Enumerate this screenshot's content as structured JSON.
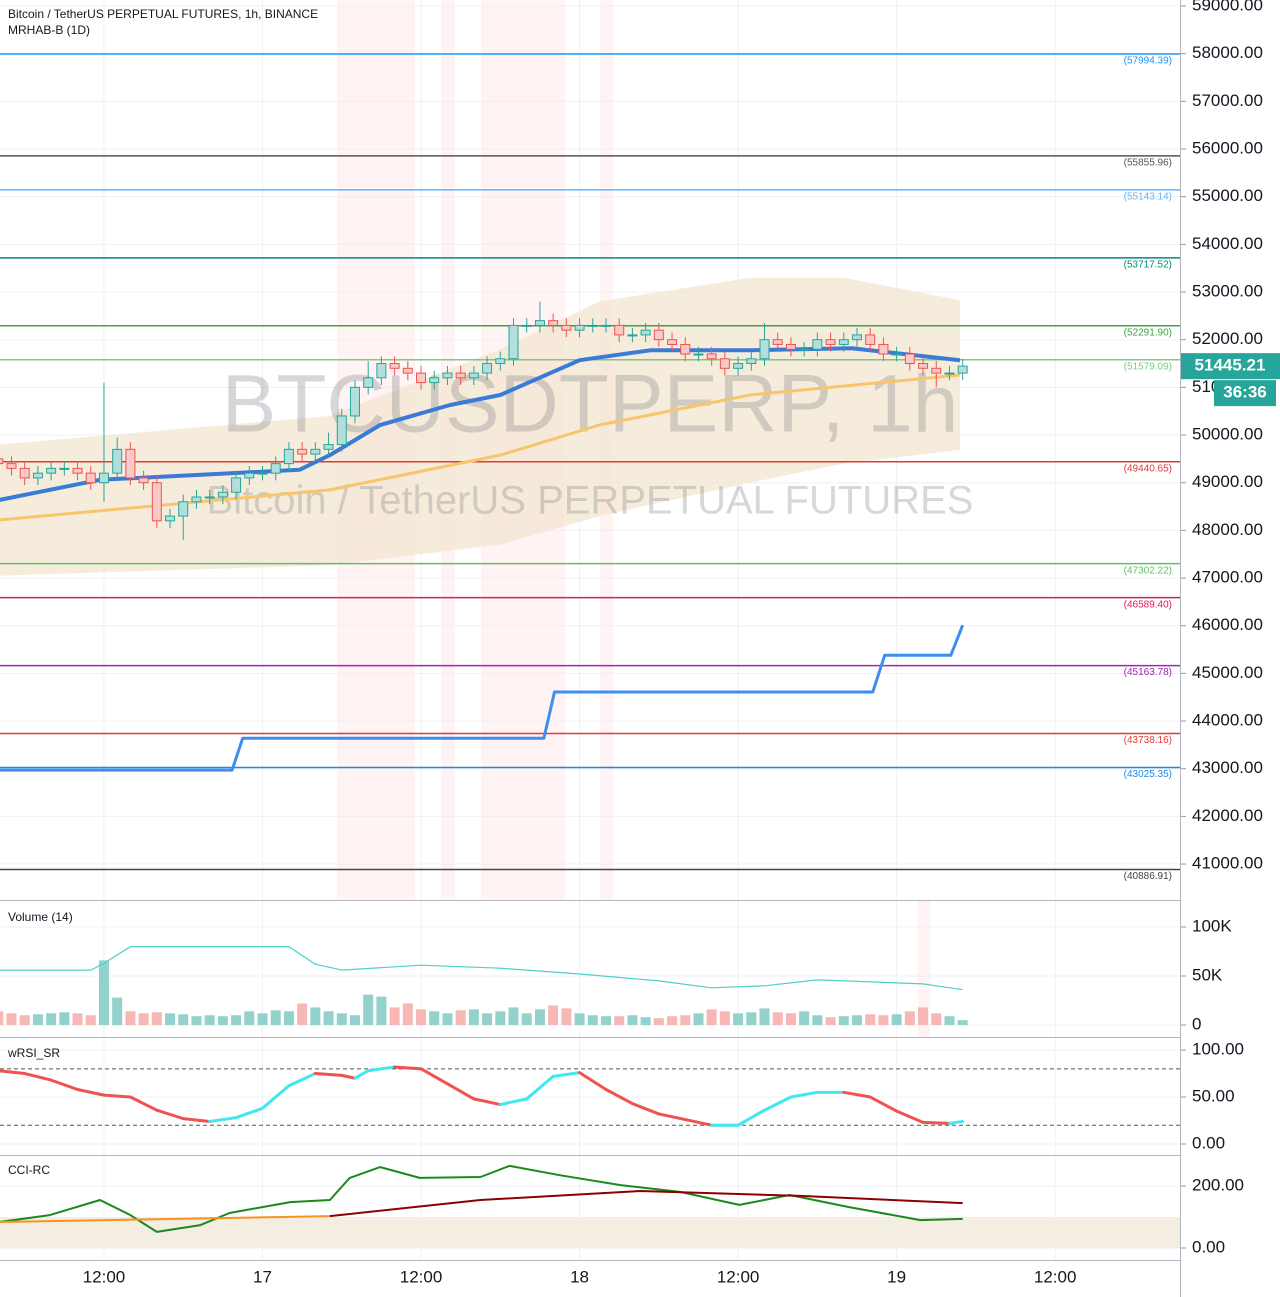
{
  "chart_data": [
    {
      "type": "candlestick",
      "title": "Bitcoin / TetherUS PERPETUAL FUTURES, 1h, BINANCE",
      "indicator": "MRHAB-B (1D)",
      "watermark": "BTCUSDTPERP, 1h",
      "watermark_subtitle": "Bitcoin / TetherUS PERPETUAL FUTURES",
      "x": [
        4,
        5,
        6,
        7,
        8,
        9,
        10,
        11,
        12,
        13,
        14,
        15,
        16,
        17,
        18,
        19,
        20,
        21,
        22,
        23,
        24,
        25,
        26,
        27,
        28,
        29,
        30,
        31,
        32,
        33,
        34,
        35,
        36,
        37,
        38,
        39,
        40,
        41,
        42,
        43,
        44,
        45,
        46,
        47,
        48,
        49,
        50,
        51,
        52,
        53,
        54,
        55,
        56,
        57,
        58,
        59,
        60,
        61,
        62,
        63,
        64,
        65,
        66,
        67,
        68,
        69,
        70,
        71,
        72,
        73,
        74,
        75,
        76,
        77
      ],
      "open": [
        49500,
        49400,
        49300,
        49100,
        49200,
        49300,
        49300,
        49200,
        49000,
        49200,
        49700,
        49100,
        49000,
        48200,
        48300,
        48600,
        48700,
        48700,
        48800,
        49100,
        49200,
        49200,
        49400,
        49700,
        49600,
        49700,
        49800,
        50400,
        51000,
        51200,
        51500,
        51400,
        51300,
        51100,
        51200,
        51300,
        51200,
        51300,
        51500,
        51600,
        52300,
        52300,
        52400,
        52300,
        52200,
        52300,
        52300,
        52300,
        52100,
        52100,
        52200,
        52000,
        51900,
        51700,
        51700,
        51600,
        51400,
        51500,
        51600,
        52000,
        51900,
        51800,
        51800,
        52000,
        51900,
        52000,
        52100,
        51900,
        51700,
        51700,
        51500,
        51400,
        51300,
        51300
      ],
      "high": [
        49650,
        49550,
        49450,
        49350,
        49450,
        49450,
        49450,
        49350,
        51100,
        49950,
        49850,
        49250,
        49150,
        48450,
        48750,
        48850,
        48850,
        48950,
        49250,
        49350,
        49350,
        49550,
        49850,
        49850,
        49850,
        50050,
        50550,
        51150,
        51550,
        51650,
        51650,
        51550,
        51450,
        51350,
        51450,
        51450,
        51450,
        51650,
        51750,
        52450,
        52450,
        52800,
        52550,
        52450,
        52450,
        52450,
        52450,
        52450,
        52250,
        52350,
        52350,
        52150,
        52050,
        51850,
        51850,
        51750,
        51650,
        51750,
        52350,
        52150,
        52050,
        51950,
        52150,
        52150,
        52150,
        52250,
        52250,
        52050,
        51850,
        51850,
        51650,
        51550,
        51450,
        51600
      ],
      "low": [
        49250,
        49150,
        48950,
        48950,
        49050,
        49150,
        49050,
        48850,
        48600,
        49050,
        48950,
        48850,
        48050,
        48050,
        47800,
        48450,
        48550,
        48550,
        48650,
        48950,
        49050,
        49050,
        49250,
        49450,
        49450,
        49550,
        49650,
        50250,
        50850,
        51050,
        51250,
        51150,
        50950,
        50950,
        51050,
        51050,
        51050,
        51150,
        51350,
        51450,
        52150,
        52150,
        52150,
        52050,
        52050,
        52150,
        52150,
        51950,
        51950,
        51950,
        51850,
        51750,
        51550,
        51550,
        51450,
        51250,
        51250,
        51350,
        51450,
        51750,
        51650,
        51650,
        51650,
        51750,
        51750,
        51850,
        51750,
        51550,
        51550,
        51350,
        51250,
        51000,
        51150,
        51150
      ],
      "close": [
        49400,
        49300,
        49100,
        49200,
        49300,
        49300,
        49200,
        49000,
        49200,
        49700,
        49100,
        49000,
        48200,
        48300,
        48600,
        48700,
        48700,
        48800,
        49100,
        49200,
        49200,
        49400,
        49700,
        49600,
        49700,
        49800,
        50400,
        51000,
        51200,
        51500,
        51400,
        51300,
        51100,
        51200,
        51300,
        51200,
        51300,
        51500,
        51600,
        52300,
        52300,
        52400,
        52300,
        52200,
        52300,
        52300,
        52300,
        52100,
        52100,
        52200,
        52000,
        51900,
        51700,
        51700,
        51600,
        51400,
        51500,
        51600,
        52000,
        51900,
        51800,
        51800,
        52000,
        51900,
        52000,
        52100,
        51900,
        51700,
        51700,
        51500,
        51400,
        51300,
        51300,
        51445.21
      ],
      "up_color": "#26a69a",
      "down_color": "#ef5350",
      "band": {
        "color": "#f3e6d0",
        "x": [
          4.1,
          29.1,
          42,
          49.5,
          60.9,
          68,
          76.8
        ],
        "upper": [
          49800,
          50400,
          51800,
          52800,
          53300,
          53300,
          52830
        ],
        "lower": [
          47050,
          47270,
          47700,
          48300,
          49000,
          49400,
          49690
        ]
      },
      "series": [
        {
          "color": "#3d8ef0",
          "width": 3,
          "x": [
            4.1,
            21.7,
            22.5,
            45.3,
            46.1,
            70.2,
            71.1,
            76.1,
            77
          ],
          "values": [
            42970,
            42970,
            43640,
            43640,
            44610,
            44610,
            45380,
            45380,
            46010
          ]
        },
        {
          "color": "#3a7bd5",
          "width": 4,
          "x": [
            4.1,
            11.7,
            26.8,
            29.1,
            32.9,
            38.2,
            42,
            48,
            53.4,
            61,
            68.6,
            76.8
          ],
          "values": [
            48640,
            49060,
            49270,
            49580,
            50210,
            50630,
            50840,
            51570,
            51780,
            51780,
            51820,
            51570
          ]
        },
        {
          "color": "#f7c56b",
          "width": 3,
          "x": [
            4.1,
            29.1,
            42,
            49.5,
            60.9,
            76.8
          ],
          "values": [
            48220,
            48850,
            49580,
            50210,
            50840,
            51260
          ]
        }
      ],
      "levels": {
        "values": [
          57994.39,
          55855.96,
          55143.14,
          53717.52,
          52291.9,
          51579.09,
          49440.65,
          47302.22,
          46589.4,
          45163.78,
          43738.16,
          43025.35,
          40886.91
        ],
        "value_labels": [
          "(57994.39)",
          "(55855.96)",
          "(55143.14)",
          "(53717.52)",
          "(52291.90)",
          "(51579.09)",
          "(49440.65)",
          "(47302.22)",
          "(46589.40)",
          "(45163.78)",
          "(43738.16)",
          "(43025.35)",
          "(40886.91)"
        ],
        "colors": [
          "#2196f3",
          "#555555",
          "#64b5f6",
          "#00897b",
          "#43a047",
          "#81c784",
          "#e53935",
          "#66bb6a",
          "#d81b60",
          "#9c27b0",
          "#e53935",
          "#1e88e5",
          "#444444"
        ]
      },
      "last_price": 51445.21,
      "countdown": "36:36",
      "xlim": [
        4.13,
        93.45
      ],
      "ylim": [
        40246,
        59126
      ],
      "xticks": [
        {
          "value": 12,
          "label": "12:00"
        },
        {
          "value": 24,
          "label": "17"
        },
        {
          "value": 36,
          "label": "12:00"
        },
        {
          "value": 48,
          "label": "18"
        },
        {
          "value": 60,
          "label": "12:00"
        },
        {
          "value": 72,
          "label": "19"
        },
        {
          "value": 84,
          "label": "12:00"
        }
      ],
      "yticks": [
        {
          "value": 41000,
          "label": "41000.00"
        },
        {
          "value": 42000,
          "label": "42000.00"
        },
        {
          "value": 43000,
          "label": "43000.00"
        },
        {
          "value": 44000,
          "label": "44000.00"
        },
        {
          "value": 45000,
          "label": "45000.00"
        },
        {
          "value": 46000,
          "label": "46000.00"
        },
        {
          "value": 47000,
          "label": "47000.00"
        },
        {
          "value": 48000,
          "label": "48000.00"
        },
        {
          "value": 49000,
          "label": "49000.00"
        },
        {
          "value": 50000,
          "label": "50000.00"
        },
        {
          "value": 51000,
          "label": "51000.00"
        },
        {
          "value": 52000,
          "label": "52000.00"
        },
        {
          "value": 53000,
          "label": "53000.00"
        },
        {
          "value": 54000,
          "label": "54000.00"
        },
        {
          "value": 55000,
          "label": "55000.00"
        },
        {
          "value": 56000,
          "label": "56000.00"
        },
        {
          "value": 57000,
          "label": "57000.00"
        },
        {
          "value": 58000,
          "label": "58000.00"
        },
        {
          "value": 59000,
          "label": "59000.00"
        }
      ],
      "grid": true
    },
    {
      "type": "bar",
      "title": "Volume (14)",
      "values": [
        14000,
        12000,
        10000,
        11000,
        12000,
        13000,
        12000,
        10000,
        66000,
        28000,
        14000,
        12000,
        13000,
        12000,
        11000,
        9000,
        10000,
        9000,
        10000,
        14000,
        12000,
        15000,
        14000,
        22000,
        18000,
        14000,
        12000,
        10000,
        31000,
        29000,
        18000,
        22000,
        16000,
        14000,
        12000,
        15000,
        16000,
        12000,
        14000,
        18000,
        12000,
        16000,
        20000,
        17000,
        12000,
        10000,
        9000,
        9000,
        10000,
        8000,
        7000,
        9000,
        10000,
        12000,
        16000,
        14000,
        12000,
        13000,
        17000,
        13000,
        12000,
        14000,
        10000,
        8000,
        9000,
        10000,
        11000,
        10000,
        11000,
        14000,
        18000,
        12000,
        9000,
        5000
      ],
      "up_color": "#93d2cc",
      "down_color": "#f7b7b5",
      "series": [
        {
          "color": "#4dd0c8",
          "width": 1.2,
          "x": [
            4,
            11,
            12,
            14,
            20,
            26,
            28,
            30,
            36,
            42,
            48,
            54,
            58,
            62,
            66,
            70,
            74,
            77
          ],
          "values": [
            56000,
            56000,
            63000,
            80000,
            80000,
            80000,
            62000,
            56000,
            61000,
            58000,
            52000,
            45000,
            38000,
            40000,
            46000,
            44000,
            42000,
            36000
          ]
        }
      ],
      "ylim": [
        -12200,
        126500
      ],
      "yticks": [
        {
          "value": 0,
          "label": "0"
        },
        {
          "value": 50000,
          "label": "50K"
        },
        {
          "value": 100000,
          "label": "100K"
        }
      ]
    },
    {
      "type": "line",
      "title": "wRSI_SR",
      "series": [
        {
          "up_color": "#3ee8f0",
          "down_color": "#ef5350",
          "width": 3,
          "x": [
            4,
            6,
            8,
            10,
            12,
            14,
            16,
            18,
            20,
            22,
            24,
            26,
            28,
            30,
            31,
            32,
            34,
            36,
            38,
            40,
            42,
            44,
            46,
            48,
            50,
            52,
            54,
            56,
            58,
            60,
            62,
            64,
            66,
            68,
            70,
            72,
            74,
            76,
            77
          ],
          "values": [
            78,
            75,
            68,
            58,
            52,
            50,
            36,
            27,
            24,
            28,
            38,
            62,
            75,
            73,
            70,
            78,
            82,
            80,
            64,
            48,
            42,
            48,
            72,
            76,
            58,
            43,
            32,
            26,
            20,
            20,
            36,
            50,
            55,
            55,
            50,
            35,
            23,
            22,
            24
          ]
        }
      ],
      "levels": [
        80,
        20
      ],
      "ylim": [
        -11.7,
        112.8
      ],
      "yticks": [
        {
          "value": 0,
          "label": "0.00"
        },
        {
          "value": 50,
          "label": "50.00"
        },
        {
          "value": 100,
          "label": "100.00"
        }
      ]
    },
    {
      "type": "line",
      "title": "CCI-RC",
      "shade_range": [
        0,
        100
      ],
      "shade_color": "#f3ede2",
      "series": [
        {
          "color": "#1b8a1b",
          "width": 2,
          "x": [
            4.1,
            7.9,
            11.7,
            14,
            16,
            19.3,
            21.5,
            26.1,
            29.1,
            30.6,
            32.9,
            35.9,
            40.5,
            42.7,
            46.5,
            51.1,
            55.6,
            60.1,
            63.9,
            68.4,
            73.8,
            77
          ],
          "values": [
            84,
            106,
            155,
            106,
            52,
            74,
            113,
            148,
            155,
            226,
            261,
            226,
            229,
            265,
            235,
            203,
            181,
            139,
            171,
            132,
            90,
            94
          ]
        },
        {
          "color": "#f7931e",
          "width": 2,
          "x": [
            4.1,
            29.1
          ],
          "values": [
            84,
            103
          ]
        },
        {
          "color": "#8b0000",
          "width": 2,
          "x": [
            29.1,
            40.5,
            52.6,
            64.7,
            77
          ],
          "values": [
            103,
            155,
            184,
            168,
            145
          ]
        }
      ],
      "ylim": [
        -38.7,
        296.8
      ],
      "yticks": [
        {
          "value": 0,
          "label": "0.00"
        },
        {
          "value": 200,
          "label": "200.00"
        }
      ]
    }
  ]
}
